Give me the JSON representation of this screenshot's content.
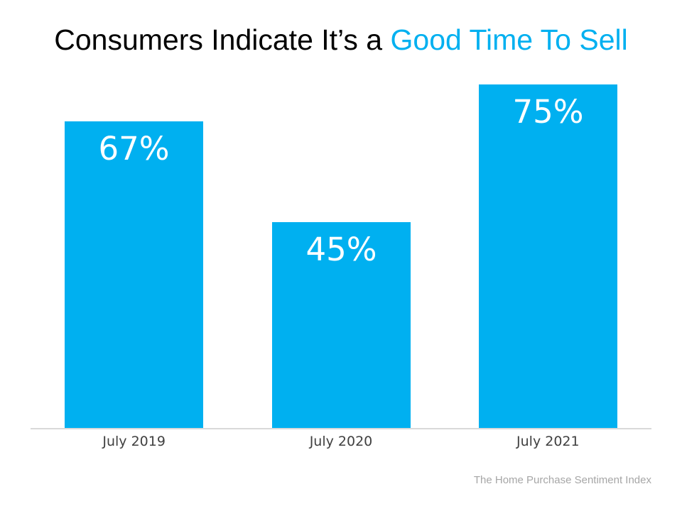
{
  "title": {
    "black": "Consumers Indicate It’s a ",
    "accent": "Good Time To Sell"
  },
  "colors": {
    "bar": "#00B0F0",
    "title_accent": "#00B0F0",
    "axis_line": "#D9D9D9",
    "axis_label": "#404040",
    "bar_label": "#FFFFFF",
    "source_text": "#A6A6A6"
  },
  "footer": {
    "source": "The Home Purchase Sentiment Index"
  },
  "chart_data": {
    "type": "bar",
    "title": "Consumers Indicate It’s a Good Time To Sell",
    "categories": [
      "July 2019",
      "July 2020",
      "July 2021"
    ],
    "values": [
      67,
      45,
      75
    ],
    "data_labels": [
      "67%",
      "45%",
      "75%"
    ],
    "xlabel": "",
    "ylabel": "",
    "ylim": [
      0,
      80
    ],
    "grid": false,
    "legend": false,
    "annotations": [
      "The Home Purchase Sentiment Index"
    ]
  }
}
